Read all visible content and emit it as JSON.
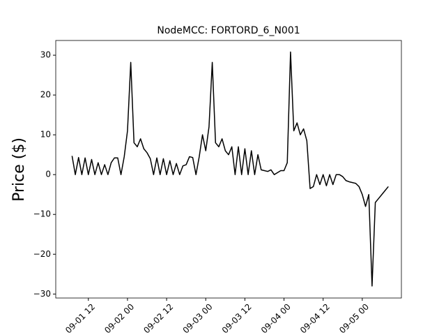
{
  "chart_data": {
    "type": "line",
    "title": "NodeMCC: FORTORD_6_N001",
    "y_label": "Price ($)",
    "x": [
      "09-01 07",
      "09-01 08",
      "09-01 09",
      "09-01 10",
      "09-01 11",
      "09-01 12",
      "09-01 13",
      "09-01 14",
      "09-01 15",
      "09-01 16",
      "09-01 17",
      "09-01 18",
      "09-01 19",
      "09-01 20",
      "09-01 21",
      "09-01 22",
      "09-01 23",
      "09-02 00",
      "09-02 01",
      "09-02 02",
      "09-02 03",
      "09-02 04",
      "09-02 05",
      "09-02 06",
      "09-02 07",
      "09-02 08",
      "09-02 09",
      "09-02 10",
      "09-02 11",
      "09-02 12",
      "09-02 13",
      "09-02 14",
      "09-02 15",
      "09-02 16",
      "09-02 17",
      "09-02 18",
      "09-02 19",
      "09-02 20",
      "09-02 21",
      "09-02 22",
      "09-02 23",
      "09-03 00",
      "09-03 01",
      "09-03 02",
      "09-03 03",
      "09-03 04",
      "09-03 05",
      "09-03 06",
      "09-03 07",
      "09-03 08",
      "09-03 09",
      "09-03 10",
      "09-03 11",
      "09-03 12",
      "09-03 13",
      "09-03 14",
      "09-03 15",
      "09-03 16",
      "09-03 17",
      "09-03 18",
      "09-03 19",
      "09-03 20",
      "09-03 21",
      "09-03 22",
      "09-03 23",
      "09-04 00",
      "09-04 01",
      "09-04 02",
      "09-04 03",
      "09-04 04",
      "09-04 05",
      "09-04 06",
      "09-04 07",
      "09-04 08",
      "09-04 09",
      "09-04 10",
      "09-04 11",
      "09-04 12",
      "09-04 13",
      "09-04 14",
      "09-04 15",
      "09-04 16",
      "09-04 17",
      "09-04 18",
      "09-04 19",
      "09-04 20",
      "09-04 21",
      "09-04 22",
      "09-04 23",
      "09-05 00",
      "09-05 01",
      "09-05 02",
      "09-05 03",
      "09-05 04",
      "09-05 05",
      "09-05 06",
      "09-05 07",
      "09-05 08"
    ],
    "series": [
      {
        "color": "#000000",
        "values": [
          4.7,
          0,
          4.3,
          0,
          4.2,
          0,
          3.8,
          0,
          3,
          0,
          2.5,
          0,
          3,
          4.2,
          4.2,
          0,
          4.5,
          11,
          28.2,
          8,
          7,
          9,
          6.5,
          5.5,
          4,
          0,
          4.2,
          0,
          4,
          0,
          3.5,
          0,
          2.8,
          0,
          2.2,
          2.5,
          4.5,
          4.3,
          0,
          4.5,
          10,
          6,
          12,
          28.2,
          8,
          7,
          9,
          6,
          5,
          7,
          0,
          7,
          0,
          6.5,
          0,
          6,
          0,
          5,
          1.2,
          1,
          0.8,
          1.2,
          0,
          0.5,
          1,
          1,
          3,
          30.8,
          11,
          13,
          10,
          11.5,
          8.5,
          -3.5,
          -3,
          0,
          -2.5,
          0,
          -2.8,
          0,
          -2.5,
          0,
          0,
          -0.5,
          -1.5,
          -1.8,
          -2,
          -2.2,
          -3,
          -5,
          -8,
          -5,
          -28,
          -7,
          -6,
          -5,
          -4,
          -3
        ]
      }
    ],
    "xlim": [
      "09-01 02",
      "09-05 12"
    ],
    "xticks": [
      "09-01 12",
      "09-02 00",
      "09-02 12",
      "09-03 00",
      "09-03 12",
      "09-04 00",
      "09-04 12",
      "09-05 00"
    ],
    "ylim": [
      -31,
      33.7
    ],
    "yticks": [
      {
        "value": -30,
        "label": "−30"
      },
      {
        "value": -20,
        "label": "−20"
      },
      {
        "value": -10,
        "label": "−10"
      },
      0,
      10,
      20,
      30
    ]
  }
}
